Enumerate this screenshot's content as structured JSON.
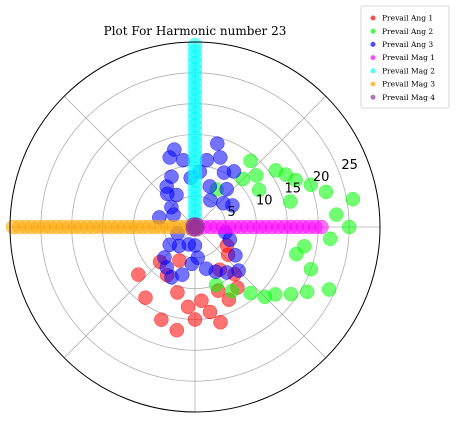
{
  "chart_data": {
    "type": "scatter",
    "projection": "polar",
    "title": "Plot For Harmonic number 23",
    "r_range": [
      0,
      30
    ],
    "r_ticks": [
      5,
      10,
      15,
      20,
      25
    ],
    "r_tick_labels": [
      "5",
      "10",
      "15",
      "20",
      "25"
    ],
    "theta_grid_deg": [
      0,
      45,
      90,
      135,
      180,
      225,
      270,
      315
    ],
    "grid": true,
    "legend_position": "top-right",
    "series": [
      {
        "name": "Prevail Ang 1",
        "color": "#ff0000",
        "points": [
          [
            220,
            12
          ],
          [
            235,
            14
          ],
          [
            250,
            16
          ],
          [
            260,
            17
          ],
          [
            270,
            15
          ],
          [
            280,
            14
          ],
          [
            290,
            11
          ],
          [
            300,
            8
          ],
          [
            310,
            10
          ],
          [
            320,
            7
          ],
          [
            330,
            6
          ],
          [
            240,
            9
          ],
          [
            255,
            11
          ],
          [
            265,
            13
          ],
          [
            275,
            12
          ],
          [
            285,
            16
          ],
          [
            295,
            13
          ],
          [
            305,
            12
          ],
          [
            245,
            6
          ],
          [
            225,
            8
          ]
        ]
      },
      {
        "name": "Prevail Ang 2",
        "color": "#00ff00",
        "points": [
          [
            10,
            26
          ],
          [
            15,
            22
          ],
          [
            20,
            20
          ],
          [
            25,
            18
          ],
          [
            30,
            17
          ],
          [
            35,
            16
          ],
          [
            40,
            13
          ],
          [
            355,
            22
          ],
          [
            350,
            18
          ],
          [
            345,
            17
          ],
          [
            340,
            20
          ],
          [
            335,
            24
          ],
          [
            330,
            21
          ],
          [
            325,
            19
          ],
          [
            320,
            17
          ],
          [
            315,
            16
          ],
          [
            310,
            14
          ],
          [
            0,
            25
          ],
          [
            5,
            23
          ],
          [
            45,
            11
          ],
          [
            50,
            14
          ],
          [
            300,
            12
          ],
          [
            290,
            10
          ],
          [
            60,
            7
          ],
          [
            15,
            16
          ],
          [
            30,
            12
          ]
        ]
      },
      {
        "name": "Prevail Ang 3",
        "color": "#0000ff",
        "points": [
          [
            55,
            11
          ],
          [
            62,
            10
          ],
          [
            70,
            12
          ],
          [
            75,
            14
          ],
          [
            80,
            11
          ],
          [
            85,
            9
          ],
          [
            95,
            8
          ],
          [
            100,
            11
          ],
          [
            105,
            13
          ],
          [
            110,
            12
          ],
          [
            115,
            9
          ],
          [
            120,
            6
          ],
          [
            125,
            8
          ],
          [
            130,
            7
          ],
          [
            140,
            5
          ],
          [
            150,
            4
          ],
          [
            165,
            6
          ],
          [
            200,
            3
          ],
          [
            215,
            5
          ],
          [
            225,
            7
          ],
          [
            235,
            8
          ],
          [
            245,
            9
          ],
          [
            255,
            8
          ],
          [
            265,
            6
          ],
          [
            275,
            5
          ],
          [
            285,
            7
          ],
          [
            295,
            8
          ],
          [
            305,
            9
          ],
          [
            315,
            10
          ],
          [
            325,
            8
          ],
          [
            340,
            6
          ],
          [
            350,
            5
          ],
          [
            30,
            7
          ],
          [
            40,
            6
          ],
          [
            50,
            8
          ],
          [
            60,
            5
          ],
          [
            70,
            7
          ],
          [
            230,
            4
          ],
          [
            250,
            3
          ],
          [
            270,
            3
          ]
        ]
      },
      {
        "name": "Prevail Mag 1",
        "color": "#ff00ff",
        "points": [
          [
            0,
            0.5
          ],
          [
            0,
            1.5
          ],
          [
            0,
            2.5
          ],
          [
            0,
            3.5
          ],
          [
            0,
            4.5
          ],
          [
            0,
            5.5
          ],
          [
            0,
            6.5
          ],
          [
            0,
            7.5
          ],
          [
            0,
            8.5
          ],
          [
            0,
            9.5
          ],
          [
            0,
            10.5
          ],
          [
            0,
            11.5
          ],
          [
            0,
            12.5
          ],
          [
            0,
            13.5
          ],
          [
            0,
            14.5
          ],
          [
            0,
            15.5
          ],
          [
            0,
            16.5
          ],
          [
            0,
            17.5
          ],
          [
            0,
            18.5
          ],
          [
            0,
            19.5
          ],
          [
            0,
            20.5
          ]
        ]
      },
      {
        "name": "Prevail Mag 2",
        "color": "#00ffff",
        "points": [
          [
            90,
            0.5
          ],
          [
            90,
            1.5
          ],
          [
            90,
            2.5
          ],
          [
            90,
            3.5
          ],
          [
            90,
            4.5
          ],
          [
            90,
            5.5
          ],
          [
            90,
            6.5
          ],
          [
            90,
            7.5
          ],
          [
            90,
            8.5
          ],
          [
            90,
            9.5
          ],
          [
            90,
            10.5
          ],
          [
            90,
            11.5
          ],
          [
            90,
            12.5
          ],
          [
            90,
            13.5
          ],
          [
            90,
            14.5
          ],
          [
            90,
            15.5
          ],
          [
            90,
            16.5
          ],
          [
            90,
            17.5
          ],
          [
            90,
            18.5
          ],
          [
            90,
            19.5
          ],
          [
            90,
            20.5
          ],
          [
            90,
            21.5
          ],
          [
            90,
            22.5
          ],
          [
            90,
            23.5
          ],
          [
            90,
            24.5
          ],
          [
            90,
            25.5
          ],
          [
            90,
            26.5
          ],
          [
            90,
            27.5
          ],
          [
            90,
            28.5
          ],
          [
            90,
            29.5
          ]
        ]
      },
      {
        "name": "Prevail Mag 3",
        "color": "#ffa500",
        "points": [
          [
            180,
            0.5
          ],
          [
            180,
            1.5
          ],
          [
            180,
            2.5
          ],
          [
            180,
            3.5
          ],
          [
            180,
            4.5
          ],
          [
            180,
            5.5
          ],
          [
            180,
            6.5
          ],
          [
            180,
            7.5
          ],
          [
            180,
            8.5
          ],
          [
            180,
            9.5
          ],
          [
            180,
            10.5
          ],
          [
            180,
            11.5
          ],
          [
            180,
            12.5
          ],
          [
            180,
            13.5
          ],
          [
            180,
            14.5
          ],
          [
            180,
            15.5
          ],
          [
            180,
            16.5
          ],
          [
            180,
            17.5
          ],
          [
            180,
            18.5
          ],
          [
            180,
            19.5
          ],
          [
            180,
            20.5
          ],
          [
            180,
            21.5
          ],
          [
            180,
            22.5
          ],
          [
            180,
            23.5
          ],
          [
            180,
            24.5
          ],
          [
            180,
            25.5
          ],
          [
            180,
            26.5
          ],
          [
            180,
            27.5
          ],
          [
            180,
            28.5
          ],
          [
            180,
            29.5
          ]
        ]
      },
      {
        "name": "Prevail Mag 4",
        "color": "#993399",
        "points": [
          [
            0,
            0.3
          ],
          [
            45,
            0.5
          ],
          [
            90,
            0.4
          ],
          [
            135,
            0.5
          ],
          [
            180,
            0.3
          ],
          [
            225,
            0.5
          ],
          [
            270,
            0.4
          ],
          [
            315,
            0.5
          ]
        ]
      }
    ]
  }
}
